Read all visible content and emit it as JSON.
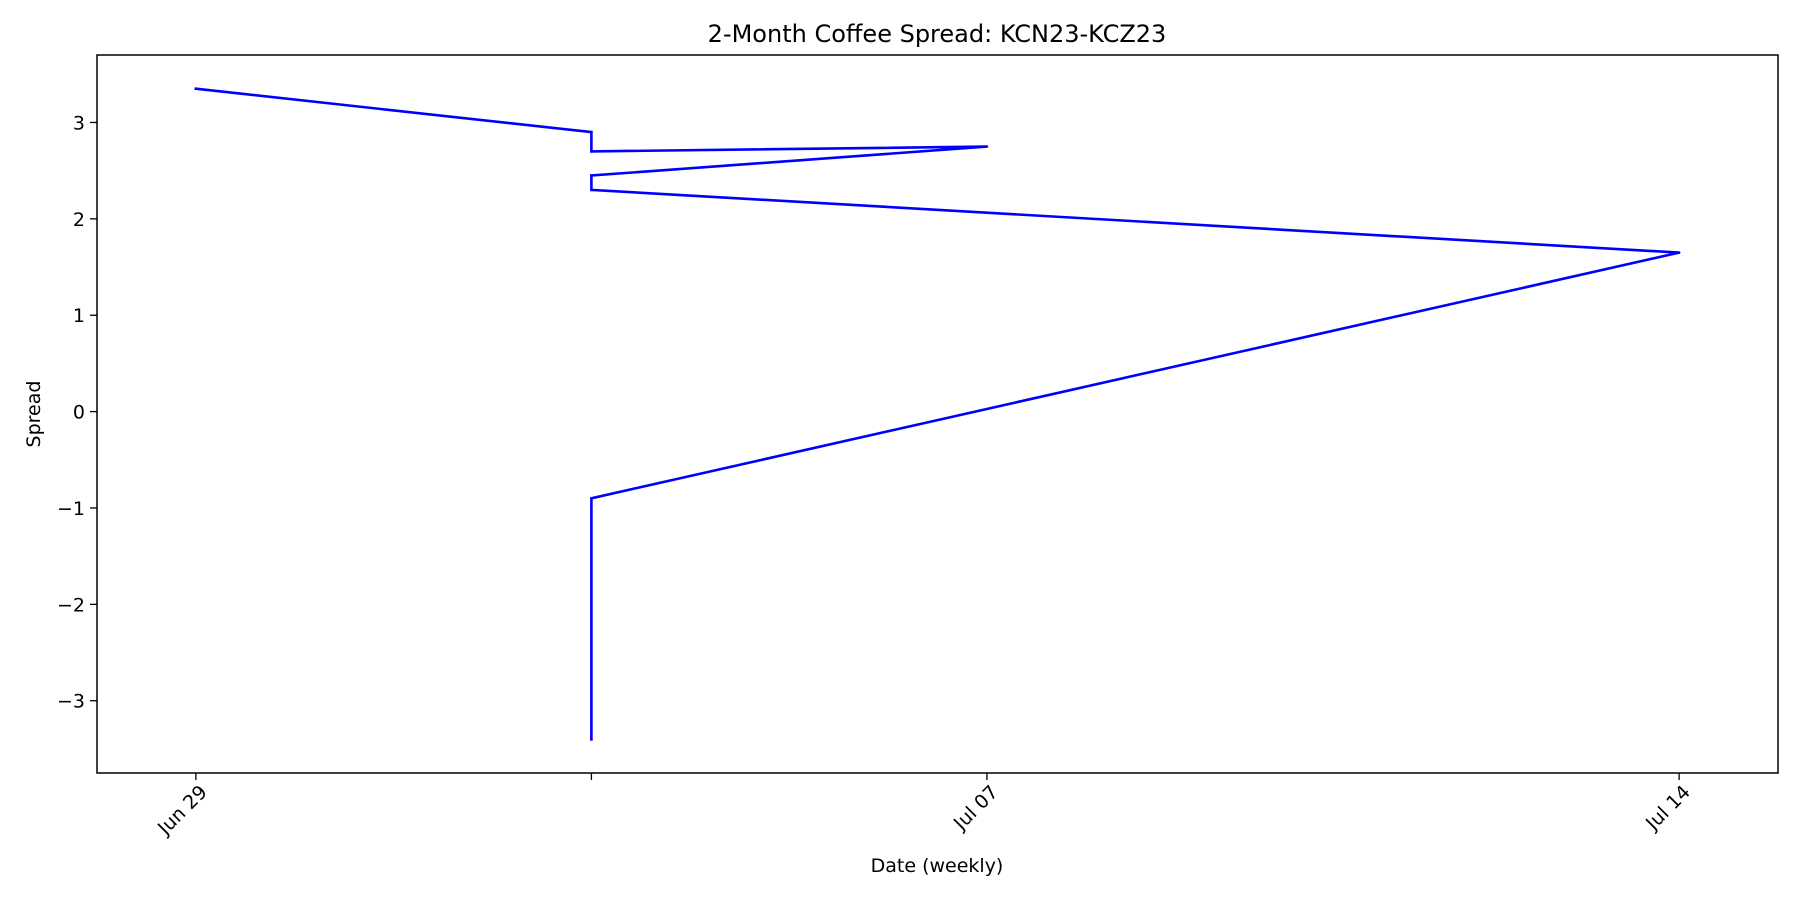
{
  "chart_data": {
    "type": "line",
    "title": "2-Month Coffee Spread: KCN23-KCZ23",
    "xlabel": "Date (weekly)",
    "ylabel": "Spread",
    "x_ticks": [
      {
        "date": "2023-06-29",
        "label": "Jun 29"
      },
      {
        "date": "2023-07-03",
        "label": ""
      },
      {
        "date": "2023-07-07",
        "label": "Jul 07"
      },
      {
        "date": "2023-07-14",
        "label": "Jul 14"
      }
    ],
    "y_ticks": [
      {
        "value": -3,
        "label": "−3"
      },
      {
        "value": -2,
        "label": "−2"
      },
      {
        "value": -1,
        "label": "−1"
      },
      {
        "value": 0,
        "label": "0"
      },
      {
        "value": 1,
        "label": "1"
      },
      {
        "value": 2,
        "label": "2"
      },
      {
        "value": 3,
        "label": "3"
      }
    ],
    "xlim": [
      "2023-06-28",
      "2023-07-15"
    ],
    "ylim": [
      -3.75,
      3.7
    ],
    "grid": false,
    "series": [
      {
        "color": "#0000ff",
        "points": [
          {
            "x": "2023-06-29",
            "y": 3.35
          },
          {
            "x": "2023-07-03",
            "y": 2.9
          },
          {
            "x": "2023-07-03",
            "y": 2.7
          },
          {
            "x": "2023-07-07",
            "y": 2.75
          },
          {
            "x": "2023-07-03",
            "y": 2.45
          },
          {
            "x": "2023-07-03",
            "y": 2.3
          },
          {
            "x": "2023-07-14",
            "y": 1.65
          },
          {
            "x": "2023-07-03",
            "y": -0.9
          },
          {
            "x": "2023-07-03",
            "y": -3.4
          }
        ]
      }
    ]
  }
}
